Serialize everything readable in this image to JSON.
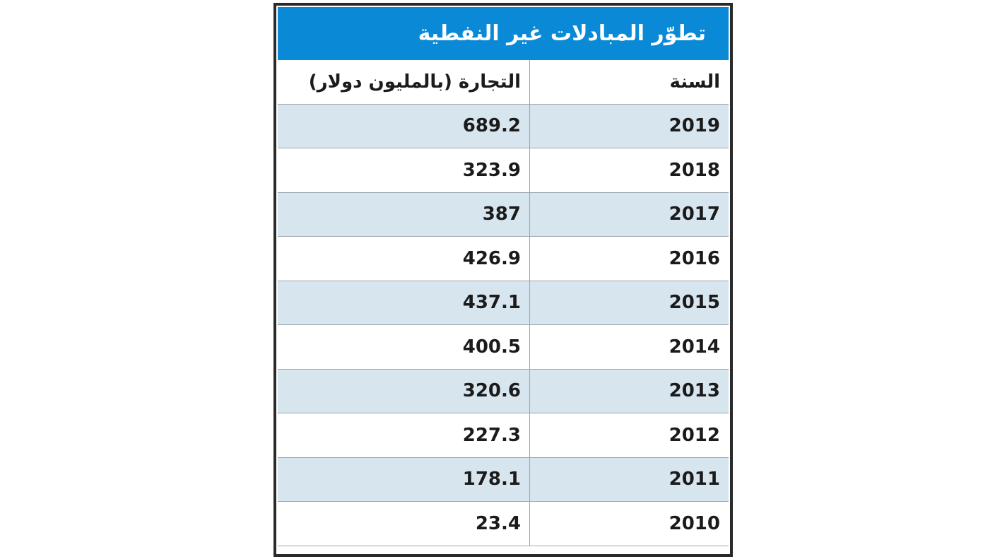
{
  "header": {
    "title": "تطوّر المبادلات غير النفطية"
  },
  "table": {
    "columns": [
      "السنة",
      "التجارة (بالمليون دولار)"
    ],
    "rows": [
      [
        "2019",
        "689.2"
      ],
      [
        "2018",
        "323.9"
      ],
      [
        "2017",
        "387"
      ],
      [
        "2016",
        "426.9"
      ],
      [
        "2015",
        "437.1"
      ],
      [
        "2014",
        "400.5"
      ],
      [
        "2013",
        "320.6"
      ],
      [
        "2012",
        "227.3"
      ],
      [
        "2011",
        "178.1"
      ],
      [
        "2010",
        "23.4"
      ]
    ]
  }
}
